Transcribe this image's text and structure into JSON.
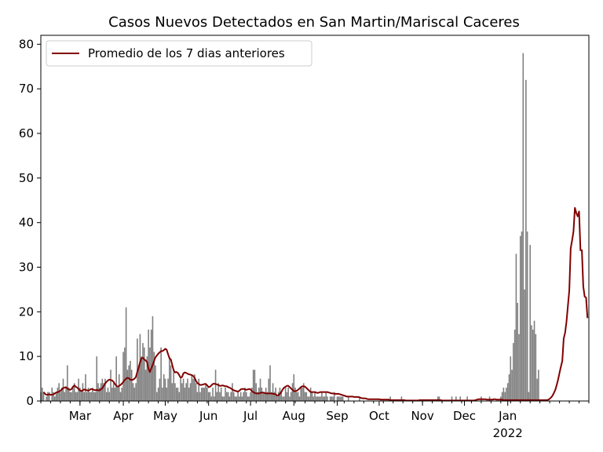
{
  "chart_data": {
    "type": "bar",
    "title": "Casos Nuevos Detectados en San Martin/Mariscal Caceres",
    "xlabel": "",
    "ylabel": "",
    "x_start_date": "2021-02-01",
    "x_end_date": "2022-02-28",
    "ylim": [
      0,
      82
    ],
    "yticks": [
      0,
      10,
      20,
      30,
      40,
      50,
      60,
      70,
      80
    ],
    "xticks": [
      {
        "label": "Mar",
        "date": "2021-03-01"
      },
      {
        "label": "Apr",
        "date": "2021-04-01"
      },
      {
        "label": "May",
        "date": "2021-05-01"
      },
      {
        "label": "Jun",
        "date": "2021-06-01"
      },
      {
        "label": "Jul",
        "date": "2021-07-01"
      },
      {
        "label": "Aug",
        "date": "2021-08-01"
      },
      {
        "label": "Sep",
        "date": "2021-09-01"
      },
      {
        "label": "Oct",
        "date": "2021-10-01"
      },
      {
        "label": "Nov",
        "date": "2021-11-01"
      },
      {
        "label": "Dec",
        "date": "2021-12-01"
      },
      {
        "label": "Jan",
        "date": "2022-01-01",
        "sublabel": "2022"
      }
    ],
    "grid": false,
    "legend": {
      "location": "upper-left"
    },
    "bar_color": "#808080",
    "line_color": "#800000",
    "series": [
      {
        "name": "",
        "kind": "bar",
        "values": [
          2,
          3,
          2,
          0,
          1,
          2,
          2,
          0,
          3,
          2,
          1,
          2,
          3,
          4,
          2,
          3,
          5,
          2,
          3,
          8,
          3,
          2,
          2,
          3,
          4,
          2,
          2,
          5,
          3,
          2,
          4,
          2,
          6,
          2,
          3,
          2,
          2,
          3,
          2,
          2,
          10,
          4,
          3,
          4,
          5,
          4,
          5,
          2,
          3,
          2,
          7,
          3,
          4,
          3,
          10,
          3,
          6,
          2,
          3,
          11,
          12,
          21,
          7,
          8,
          9,
          7,
          4,
          3,
          4,
          14,
          8,
          15,
          10,
          13,
          12,
          7,
          10,
          16,
          12,
          16,
          19,
          11,
          8,
          2,
          3,
          5,
          12,
          3,
          6,
          5,
          3,
          5,
          10,
          8,
          4,
          7,
          4,
          3,
          3,
          2,
          5,
          4,
          5,
          3,
          4,
          5,
          3,
          4,
          6,
          5,
          6,
          4,
          2,
          5,
          2,
          3,
          3,
          3,
          4,
          3,
          2,
          2,
          1,
          3,
          1,
          7,
          2,
          4,
          2,
          3,
          1,
          1,
          3,
          2,
          2,
          1,
          2,
          4,
          2,
          1,
          1,
          2,
          1,
          2,
          1,
          2,
          3,
          2,
          1,
          1,
          2,
          3,
          7,
          7,
          4,
          2,
          3,
          5,
          3,
          2,
          2,
          3,
          2,
          5,
          8,
          2,
          4,
          2,
          3,
          1,
          2,
          3,
          2,
          1,
          1,
          3,
          2,
          3,
          1,
          2,
          4,
          6,
          3,
          2,
          2,
          1,
          3,
          3,
          4,
          2,
          2,
          1,
          1,
          3,
          2,
          1,
          2,
          1,
          1,
          1,
          1,
          2,
          1,
          1,
          2,
          1,
          0,
          1,
          1,
          1,
          2,
          0,
          1,
          1,
          1,
          1,
          1,
          0,
          0,
          0,
          1,
          0,
          0,
          0,
          0,
          0,
          0,
          0,
          1,
          0,
          0,
          0,
          0,
          0,
          0,
          0,
          0,
          0,
          0,
          0,
          0,
          0,
          0,
          0,
          0,
          0,
          0,
          0,
          0,
          0,
          1,
          0,
          0,
          0,
          0,
          0,
          0,
          0,
          1,
          0,
          0,
          0,
          0,
          0,
          0,
          0,
          0,
          0,
          0,
          0,
          0,
          0,
          0,
          0,
          0,
          0,
          0,
          0,
          0,
          0,
          0,
          0,
          0,
          0,
          1,
          1,
          0,
          0,
          0,
          0,
          0,
          0,
          0,
          0,
          1,
          0,
          0,
          1,
          0,
          0,
          1,
          0,
          0,
          0,
          0,
          1,
          0,
          0,
          0,
          0,
          0,
          0,
          0,
          0,
          0,
          1,
          0,
          0,
          0,
          0,
          0,
          1,
          0,
          0,
          0,
          0,
          0,
          0,
          0,
          1,
          2,
          3,
          2,
          3,
          4,
          6,
          10,
          7,
          13,
          16,
          33,
          22,
          15,
          37,
          38,
          78,
          25,
          72,
          38,
          2,
          35,
          17,
          16,
          18,
          15,
          5,
          7
        ]
      },
      {
        "name": "Promedio de los 7 dias anteriores",
        "kind": "line",
        "start_offset_days": 2,
        "values": [
          2,
          1.6,
          1.4,
          1.4,
          1.5,
          1.4,
          1.4,
          1.5,
          1.7,
          1.9,
          2,
          2.1,
          2.3,
          2.6,
          2.9,
          3,
          3.1,
          2.8,
          2.6,
          2.5,
          2.7,
          3.2,
          3.5,
          3.2,
          3,
          2.7,
          2.4,
          2.2,
          2.4,
          2.6,
          2.5,
          2.4,
          2.3,
          2.5,
          2.7,
          2.6,
          2.5,
          2.4,
          2.5,
          2.4,
          2.4,
          2.6,
          2.9,
          3.4,
          3.9,
          4.3,
          4.6,
          4.8,
          4.7,
          4.6,
          4.3,
          3.8,
          3.4,
          3.2,
          3.4,
          3.6,
          3.9,
          4.3,
          4.7,
          5,
          5.2,
          5.1,
          4.8,
          4.7,
          4.8,
          5,
          5.4,
          6.5,
          7.5,
          8.7,
          9.6,
          9.7,
          9.3,
          9.1,
          8.7,
          7.2,
          6.5,
          7.3,
          8.1,
          9,
          9.8,
          10.2,
          10.6,
          10.9,
          11.2,
          11.2,
          11.4,
          11.7,
          11.5,
          10.5,
          9.6,
          9.3,
          8.1,
          6.9,
          6.4,
          6.5,
          6.3,
          5.8,
          5.2,
          5.4,
          6.2,
          6.4,
          6.3,
          6.1,
          6,
          5.9,
          5.8,
          5.6,
          5.2,
          4.5,
          4,
          3.8,
          3.6,
          3.6,
          3.7,
          3.8,
          3.8,
          3.5,
          3.1,
          3.2,
          3.5,
          3.8,
          3.9,
          3.8,
          3.7,
          3.6,
          3.4,
          3.4,
          3.5,
          3.4,
          3.3,
          3.3,
          3.1,
          3,
          2.8,
          2.6,
          2.4,
          2.3,
          2.2,
          2.1,
          2.3,
          2.6,
          2.7,
          2.7,
          2.6,
          2.5,
          2.6,
          2.7,
          2.6,
          2.2,
          2,
          1.8,
          1.7,
          1.7,
          1.7,
          1.8,
          1.9,
          1.9,
          1.8,
          1.7,
          1.7,
          1.7,
          1.7,
          1.7,
          1.6,
          1.6,
          1.5,
          1.2,
          1.3,
          1.6,
          2,
          2.6,
          3,
          3.2,
          3.4,
          3.4,
          3.1,
          2.8,
          2.5,
          2.2,
          2.2,
          2.3,
          2.5,
          2.8,
          3.1,
          3.3,
          3.3,
          3.2,
          2.9,
          2.6,
          2.3,
          2,
          2,
          2,
          2,
          1.9,
          1.8,
          1.9,
          2,
          2,
          2,
          2,
          2,
          2,
          1.9,
          1.8,
          1.7,
          1.7,
          1.6,
          1.6,
          1.6,
          1.6,
          1.5,
          1.4,
          1.3,
          1.2,
          1.1,
          1,
          1,
          1,
          1,
          1,
          0.9,
          0.9,
          0.9,
          0.9,
          0.8,
          0.7,
          0.6,
          0.6,
          0.6,
          0.5,
          0.4,
          0.4,
          0.4,
          0.4,
          0.4,
          0.4,
          0.4,
          0.4,
          0.4,
          0.3,
          0.3,
          0.3,
          0.3,
          0.3,
          0.3,
          0.3,
          0.2,
          0.2,
          0.2,
          0.2,
          0.2,
          0.2,
          0.2,
          0.2,
          0.2,
          0.2,
          0.2,
          0.1,
          0.1,
          0.1,
          0.1,
          0.1,
          0.1,
          0.1,
          0.1,
          0.1,
          0.1,
          0.2,
          0.2,
          0.2,
          0.2,
          0.2,
          0.2,
          0.2,
          0.2,
          0.2,
          0.2,
          0.2,
          0.2,
          0.2,
          0.2,
          0.2,
          0.2,
          0.1,
          0.1,
          0.1,
          0.1,
          0.1,
          0.1,
          0.1,
          0.1,
          0.1,
          0.1,
          0.1,
          0.1,
          0.1,
          0.1,
          0.1,
          0.1,
          0.1,
          0.1,
          0.1,
          0.1,
          0.1,
          0.1,
          0.1,
          0.1,
          0.2,
          0.3,
          0.4,
          0.4,
          0.4,
          0.4,
          0.4,
          0.4,
          0.3,
          0.3,
          0.3,
          0.3,
          0.3,
          0.4,
          0.4,
          0.3,
          0.3,
          0.3,
          0.3,
          0.3,
          0.2,
          0.2,
          0.2,
          0.2,
          0.2,
          0.2,
          0.2,
          0.2,
          0.2,
          0.2,
          0.2,
          0.2,
          0.2,
          0.2,
          0.2,
          0.2,
          0.2,
          0.2,
          0.2,
          0.2,
          0.2,
          0.2,
          0.2,
          0.2,
          0.2,
          0.2,
          0.2,
          0.2,
          0.2,
          0.2,
          0.2,
          0.2,
          0.3,
          0.5,
          0.8,
          1.2,
          1.8,
          2.5,
          3.6,
          4.8,
          6.3,
          7.7,
          9,
          14,
          15.3,
          17.8,
          21.3,
          24.8,
          34.2,
          36,
          38,
          43.3,
          42.2,
          41.4,
          42.5,
          33.8,
          33.8,
          25.7,
          23.4,
          23.2,
          18.6
        ]
      }
    ]
  }
}
